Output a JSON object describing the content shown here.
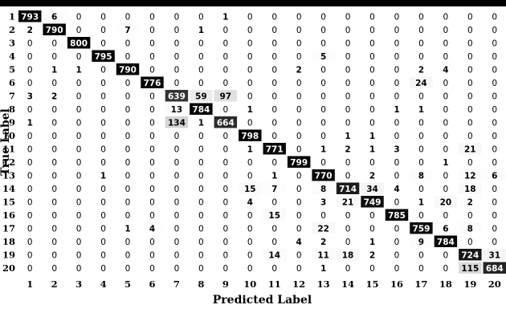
{
  "chart_data": {
    "type": "heatmap",
    "title": "",
    "xlabel": "Predicted Label",
    "ylabel": "True Label",
    "row_labels": [
      "1",
      "2",
      "3",
      "4",
      "5",
      "6",
      "7",
      "8",
      "9",
      "10",
      "11",
      "12",
      "13",
      "14",
      "15",
      "16",
      "17",
      "18",
      "19",
      "20"
    ],
    "col_labels": [
      "1",
      "2",
      "3",
      "4",
      "5",
      "6",
      "7",
      "8",
      "9",
      "10",
      "11",
      "12",
      "13",
      "14",
      "15",
      "16",
      "17",
      "18",
      "19",
      "20"
    ],
    "matrix": [
      [
        793,
        6,
        0,
        0,
        0,
        0,
        0,
        0,
        1,
        0,
        0,
        0,
        0,
        0,
        0,
        0,
        0,
        0,
        0,
        0
      ],
      [
        2,
        790,
        0,
        0,
        7,
        0,
        0,
        1,
        0,
        0,
        0,
        0,
        0,
        0,
        0,
        0,
        0,
        0,
        0,
        0
      ],
      [
        0,
        0,
        800,
        0,
        0,
        0,
        0,
        0,
        0,
        0,
        0,
        0,
        0,
        0,
        0,
        0,
        0,
        0,
        0,
        0
      ],
      [
        0,
        0,
        0,
        795,
        0,
        0,
        0,
        0,
        0,
        0,
        0,
        0,
        5,
        0,
        0,
        0,
        0,
        0,
        0,
        0
      ],
      [
        0,
        1,
        1,
        0,
        790,
        0,
        0,
        0,
        0,
        0,
        0,
        2,
        0,
        0,
        0,
        0,
        2,
        4,
        0,
        0
      ],
      [
        0,
        0,
        0,
        0,
        0,
        776,
        0,
        0,
        0,
        0,
        0,
        0,
        0,
        0,
        0,
        0,
        24,
        0,
        0,
        0
      ],
      [
        3,
        2,
        0,
        0,
        0,
        0,
        639,
        59,
        97,
        0,
        0,
        0,
        0,
        0,
        0,
        0,
        0,
        0,
        0,
        0
      ],
      [
        0,
        0,
        0,
        0,
        0,
        0,
        13,
        784,
        0,
        1,
        0,
        0,
        0,
        0,
        0,
        1,
        1,
        0,
        0,
        0
      ],
      [
        1,
        0,
        0,
        0,
        0,
        0,
        134,
        1,
        664,
        0,
        0,
        0,
        0,
        0,
        0,
        0,
        0,
        0,
        0,
        0
      ],
      [
        0,
        0,
        0,
        0,
        0,
        0,
        0,
        0,
        0,
        798,
        0,
        0,
        0,
        1,
        1,
        0,
        0,
        0,
        0,
        0
      ],
      [
        0,
        0,
        0,
        0,
        0,
        0,
        0,
        0,
        0,
        1,
        771,
        0,
        1,
        2,
        1,
        3,
        0,
        0,
        21,
        0
      ],
      [
        0,
        0,
        0,
        0,
        0,
        0,
        0,
        0,
        0,
        0,
        0,
        799,
        0,
        0,
        0,
        0,
        0,
        1,
        0,
        0
      ],
      [
        0,
        0,
        0,
        1,
        0,
        0,
        0,
        0,
        0,
        0,
        1,
        0,
        770,
        0,
        2,
        0,
        8,
        0,
        12,
        6
      ],
      [
        0,
        0,
        0,
        0,
        0,
        0,
        0,
        0,
        0,
        15,
        7,
        0,
        8,
        714,
        34,
        4,
        0,
        0,
        18,
        0
      ],
      [
        0,
        0,
        0,
        0,
        0,
        0,
        0,
        0,
        0,
        4,
        0,
        0,
        3,
        21,
        749,
        0,
        1,
        20,
        2,
        0
      ],
      [
        0,
        0,
        0,
        0,
        0,
        0,
        0,
        0,
        0,
        0,
        15,
        0,
        0,
        0,
        0,
        785,
        0,
        0,
        0,
        0
      ],
      [
        0,
        0,
        0,
        0,
        1,
        4,
        0,
        0,
        0,
        0,
        0,
        0,
        22,
        0,
        0,
        0,
        759,
        6,
        8,
        0
      ],
      [
        0,
        0,
        0,
        0,
        0,
        0,
        0,
        0,
        0,
        0,
        0,
        4,
        2,
        0,
        1,
        0,
        9,
        784,
        0,
        0
      ],
      [
        0,
        0,
        0,
        0,
        0,
        0,
        0,
        0,
        0,
        0,
        14,
        0,
        11,
        18,
        2,
        0,
        0,
        0,
        724,
        31
      ],
      [
        0,
        0,
        0,
        0,
        0,
        0,
        0,
        0,
        0,
        0,
        0,
        0,
        1,
        0,
        0,
        0,
        0,
        0,
        115,
        684
      ]
    ],
    "color_scale": {
      "low": "#ffffff",
      "high": "#000000",
      "vmax": 800
    },
    "grid": false,
    "legend": "none"
  }
}
